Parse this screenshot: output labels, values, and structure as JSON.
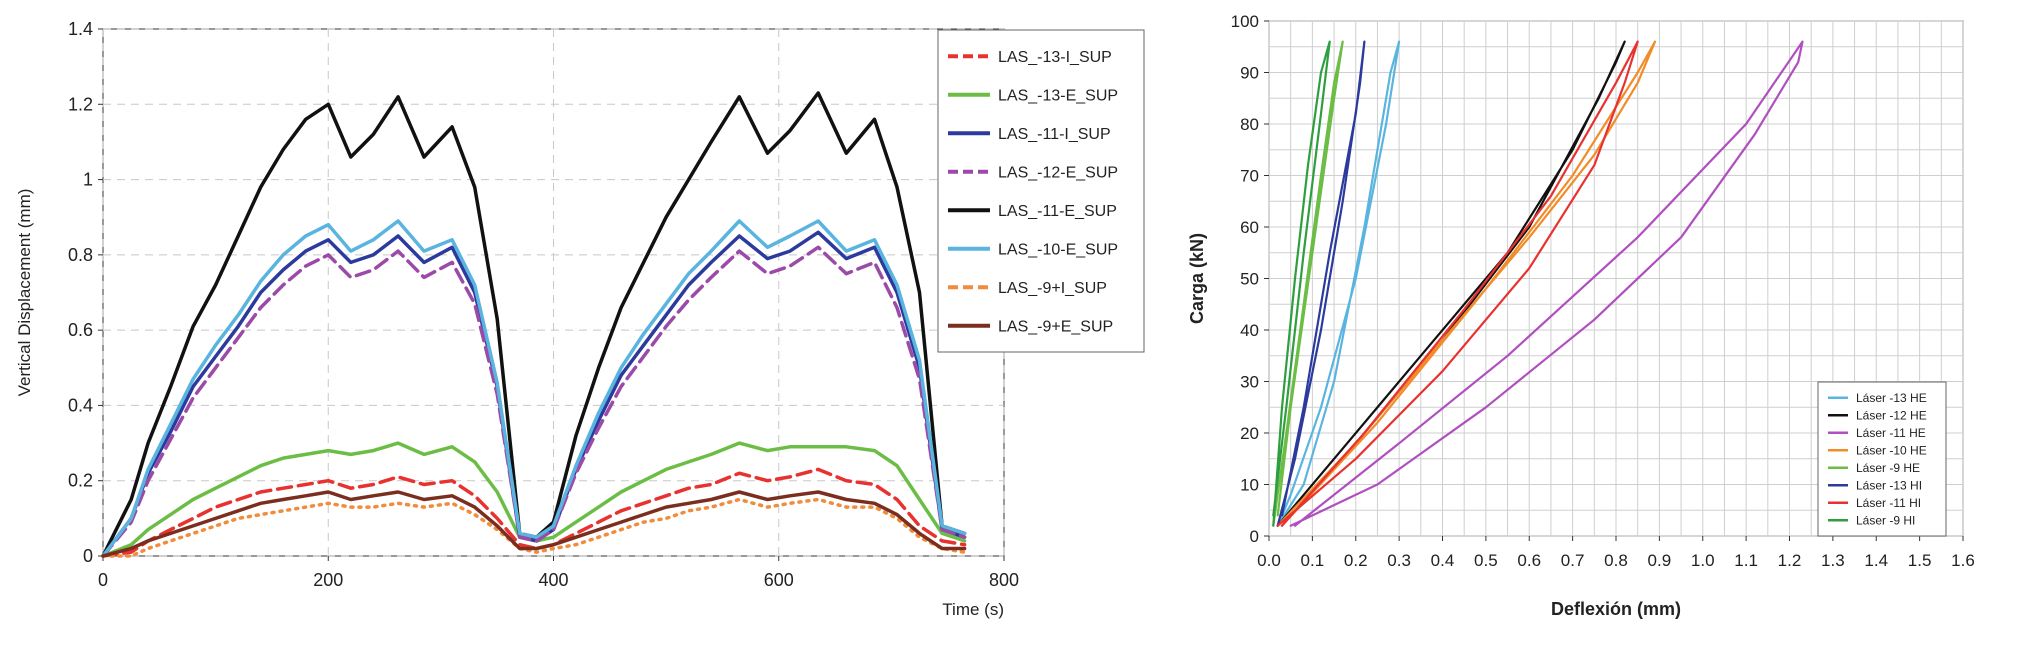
{
  "chart_data": [
    {
      "type": "line",
      "xlabel": "Time (s)",
      "ylabel": "Vertical Displacement (mm)",
      "xlim": [
        0,
        800
      ],
      "ylim": [
        0,
        1.4
      ],
      "xticks": [
        "0",
        "200",
        "400",
        "600",
        "800"
      ],
      "yticks": [
        "0",
        "0.2",
        "0.4",
        "0.6",
        "0.8",
        "1",
        "1.2",
        "1.4"
      ],
      "grid": true,
      "legend_position": "top-right",
      "series": [
        {
          "name": "LAS_-13-I_SUP",
          "color": "#e8322f",
          "style": "dashed",
          "x": [
            0,
            25,
            40,
            60,
            80,
            100,
            120,
            140,
            160,
            180,
            200,
            220,
            240,
            262,
            285,
            310,
            330,
            350,
            370,
            385,
            400,
            420,
            440,
            460,
            480,
            500,
            520,
            540,
            565,
            590,
            610,
            635,
            660,
            685,
            705,
            725,
            745,
            765
          ],
          "y": [
            0,
            0.01,
            0.04,
            0.07,
            0.1,
            0.13,
            0.15,
            0.17,
            0.18,
            0.19,
            0.2,
            0.18,
            0.19,
            0.21,
            0.19,
            0.2,
            0.16,
            0.1,
            0.03,
            0.02,
            0.03,
            0.06,
            0.09,
            0.12,
            0.14,
            0.16,
            0.18,
            0.19,
            0.22,
            0.2,
            0.21,
            0.23,
            0.2,
            0.19,
            0.15,
            0.08,
            0.04,
            0.03
          ]
        },
        {
          "name": "LAS_-13-E_SUP",
          "color": "#6cbd45",
          "style": "solid",
          "x": [
            0,
            25,
            40,
            60,
            80,
            100,
            120,
            140,
            160,
            180,
            200,
            220,
            240,
            262,
            285,
            310,
            330,
            350,
            370,
            385,
            400,
            420,
            440,
            460,
            480,
            500,
            520,
            540,
            565,
            590,
            610,
            635,
            660,
            685,
            705,
            725,
            745,
            765
          ],
          "y": [
            0,
            0.03,
            0.07,
            0.11,
            0.15,
            0.18,
            0.21,
            0.24,
            0.26,
            0.27,
            0.28,
            0.27,
            0.28,
            0.3,
            0.27,
            0.29,
            0.25,
            0.17,
            0.05,
            0.04,
            0.05,
            0.09,
            0.13,
            0.17,
            0.2,
            0.23,
            0.25,
            0.27,
            0.3,
            0.28,
            0.29,
            0.29,
            0.29,
            0.28,
            0.24,
            0.15,
            0.06,
            0.04
          ]
        },
        {
          "name": "LAS_-11-I_SUP",
          "color": "#2b3a9c",
          "style": "solid",
          "x": [
            0,
            25,
            40,
            60,
            80,
            100,
            120,
            140,
            160,
            180,
            200,
            220,
            240,
            262,
            285,
            310,
            330,
            350,
            370,
            385,
            400,
            420,
            440,
            460,
            480,
            500,
            520,
            540,
            565,
            590,
            610,
            635,
            660,
            685,
            705,
            725,
            745,
            765
          ],
          "y": [
            0,
            0.1,
            0.22,
            0.33,
            0.45,
            0.53,
            0.61,
            0.7,
            0.76,
            0.81,
            0.84,
            0.78,
            0.8,
            0.85,
            0.78,
            0.82,
            0.7,
            0.45,
            0.05,
            0.04,
            0.07,
            0.23,
            0.36,
            0.48,
            0.56,
            0.64,
            0.72,
            0.78,
            0.85,
            0.79,
            0.81,
            0.86,
            0.79,
            0.82,
            0.7,
            0.5,
            0.07,
            0.05
          ]
        },
        {
          "name": "LAS_-12-E_SUP",
          "color": "#9b4aa8",
          "style": "dashed",
          "x": [
            0,
            25,
            40,
            60,
            80,
            100,
            120,
            140,
            160,
            180,
            200,
            220,
            240,
            262,
            285,
            310,
            330,
            350,
            370,
            385,
            400,
            420,
            440,
            460,
            480,
            500,
            520,
            540,
            565,
            590,
            610,
            635,
            660,
            685,
            705,
            725,
            745,
            765
          ],
          "y": [
            0,
            0.09,
            0.2,
            0.31,
            0.42,
            0.5,
            0.58,
            0.66,
            0.72,
            0.77,
            0.8,
            0.74,
            0.76,
            0.81,
            0.74,
            0.78,
            0.67,
            0.43,
            0.05,
            0.04,
            0.07,
            0.22,
            0.34,
            0.45,
            0.53,
            0.61,
            0.68,
            0.74,
            0.81,
            0.75,
            0.77,
            0.82,
            0.75,
            0.78,
            0.66,
            0.47,
            0.07,
            0.05
          ]
        },
        {
          "name": "LAS_-11-E_SUP",
          "color": "#111111",
          "style": "solid",
          "x": [
            0,
            25,
            40,
            60,
            80,
            100,
            120,
            140,
            160,
            180,
            200,
            220,
            240,
            262,
            285,
            310,
            330,
            350,
            370,
            385,
            400,
            420,
            440,
            460,
            480,
            500,
            520,
            540,
            565,
            590,
            610,
            635,
            660,
            685,
            705,
            725,
            745,
            765
          ],
          "y": [
            0,
            0.15,
            0.3,
            0.45,
            0.61,
            0.72,
            0.85,
            0.98,
            1.08,
            1.16,
            1.2,
            1.06,
            1.12,
            1.22,
            1.06,
            1.14,
            0.98,
            0.63,
            0.06,
            0.05,
            0.09,
            0.32,
            0.5,
            0.66,
            0.78,
            0.9,
            1.0,
            1.1,
            1.22,
            1.07,
            1.13,
            1.23,
            1.07,
            1.16,
            0.98,
            0.7,
            0.08,
            0.06
          ]
        },
        {
          "name": "LAS_-10-E_SUP",
          "color": "#5ab4e0",
          "style": "solid",
          "x": [
            0,
            25,
            40,
            60,
            80,
            100,
            120,
            140,
            160,
            180,
            200,
            220,
            240,
            262,
            285,
            310,
            330,
            350,
            370,
            385,
            400,
            420,
            440,
            460,
            480,
            500,
            520,
            540,
            565,
            590,
            610,
            635,
            660,
            685,
            705,
            725,
            745,
            765
          ],
          "y": [
            0,
            0.1,
            0.23,
            0.35,
            0.47,
            0.56,
            0.64,
            0.73,
            0.8,
            0.85,
            0.88,
            0.81,
            0.84,
            0.89,
            0.81,
            0.84,
            0.72,
            0.46,
            0.06,
            0.05,
            0.08,
            0.24,
            0.38,
            0.5,
            0.59,
            0.67,
            0.75,
            0.81,
            0.89,
            0.82,
            0.85,
            0.89,
            0.81,
            0.84,
            0.72,
            0.52,
            0.08,
            0.06
          ]
        },
        {
          "name": "LAS_-9+I_SUP",
          "color": "#f08c3c",
          "style": "dotted",
          "x": [
            0,
            25,
            40,
            60,
            80,
            100,
            120,
            140,
            160,
            180,
            200,
            220,
            240,
            262,
            285,
            310,
            330,
            350,
            370,
            385,
            400,
            420,
            440,
            460,
            480,
            500,
            520,
            540,
            565,
            590,
            610,
            635,
            660,
            685,
            705,
            725,
            745,
            765
          ],
          "y": [
            0,
            0,
            0.02,
            0.04,
            0.06,
            0.08,
            0.1,
            0.11,
            0.12,
            0.13,
            0.14,
            0.13,
            0.13,
            0.14,
            0.13,
            0.14,
            0.11,
            0.07,
            0.02,
            0.01,
            0.02,
            0.03,
            0.05,
            0.07,
            0.09,
            0.1,
            0.12,
            0.13,
            0.15,
            0.13,
            0.14,
            0.15,
            0.13,
            0.13,
            0.1,
            0.05,
            0.02,
            0.01
          ]
        },
        {
          "name": "LAS_-9+E_SUP",
          "color": "#7b2d1e",
          "style": "solid",
          "x": [
            0,
            25,
            40,
            60,
            80,
            100,
            120,
            140,
            160,
            180,
            200,
            220,
            240,
            262,
            285,
            310,
            330,
            350,
            370,
            385,
            400,
            420,
            440,
            460,
            480,
            500,
            520,
            540,
            565,
            590,
            610,
            635,
            660,
            685,
            705,
            725,
            745,
            765
          ],
          "y": [
            0,
            0.02,
            0.04,
            0.06,
            0.08,
            0.1,
            0.12,
            0.14,
            0.15,
            0.16,
            0.17,
            0.15,
            0.16,
            0.17,
            0.15,
            0.16,
            0.13,
            0.08,
            0.02,
            0.02,
            0.03,
            0.05,
            0.07,
            0.09,
            0.11,
            0.13,
            0.14,
            0.15,
            0.17,
            0.15,
            0.16,
            0.17,
            0.15,
            0.14,
            0.11,
            0.06,
            0.02,
            0.02
          ]
        }
      ]
    },
    {
      "type": "line",
      "xlabel": "Deflexión (mm)",
      "ylabel": "Carga (kN)",
      "xlim": [
        0,
        1.6
      ],
      "ylim": [
        0,
        100
      ],
      "xticks": [
        "0.0",
        "0.1",
        "0.2",
        "0.3",
        "0.4",
        "0.5",
        "0.6",
        "0.7",
        "0.8",
        "0.9",
        "1.0",
        "1.1",
        "1.2",
        "1.3",
        "1.4",
        "1.5",
        "1.6"
      ],
      "yticks": [
        "0",
        "10",
        "20",
        "30",
        "40",
        "50",
        "60",
        "70",
        "80",
        "90",
        "100"
      ],
      "grid": true,
      "legend_position": "bottom-right",
      "series": [
        {
          "name": "Láser -13 HE",
          "color": "#5ab4e0",
          "x": [
            0.02,
            0.08,
            0.15,
            0.22,
            0.28,
            0.3,
            0.27,
            0.2,
            0.12,
            0.05,
            0.02
          ],
          "y": [
            2,
            10,
            30,
            60,
            90,
            96,
            80,
            50,
            25,
            8,
            2
          ]
        },
        {
          "name": "Láser -12 HE",
          "color": "#111111",
          "x": [
            0.02,
            0.15,
            0.35,
            0.55,
            0.7,
            0.8,
            0.82,
            0.76,
            0.6,
            0.4,
            0.2,
            0.03
          ],
          "y": [
            2,
            15,
            35,
            55,
            75,
            92,
            96,
            85,
            60,
            38,
            18,
            2
          ]
        },
        {
          "name": "Láser -11 HE",
          "color": "#b04fbf",
          "x": [
            0.05,
            0.25,
            0.5,
            0.75,
            0.95,
            1.12,
            1.22,
            1.23,
            1.1,
            0.85,
            0.55,
            0.3,
            0.06
          ],
          "y": [
            2,
            10,
            25,
            42,
            58,
            78,
            92,
            96,
            80,
            58,
            35,
            18,
            2
          ]
        },
        {
          "name": "Láser -10 HE",
          "color": "#f28c28",
          "x": [
            0.02,
            0.2,
            0.4,
            0.6,
            0.75,
            0.85,
            0.89,
            0.85,
            0.7,
            0.5,
            0.25,
            0.03
          ],
          "y": [
            2,
            18,
            38,
            58,
            74,
            88,
            96,
            90,
            70,
            48,
            22,
            2
          ]
        },
        {
          "name": "Láser -9 HE",
          "color": "#6cbd45",
          "x": [
            0.01,
            0.04,
            0.08,
            0.12,
            0.15,
            0.17,
            0.15,
            0.1,
            0.05,
            0.02
          ],
          "y": [
            2,
            20,
            45,
            70,
            88,
            96,
            85,
            55,
            25,
            4
          ]
        },
        {
          "name": "Láser -13 HI",
          "color": "#2b3a9c",
          "x": [
            0.02,
            0.06,
            0.12,
            0.17,
            0.21,
            0.22,
            0.2,
            0.14,
            0.08,
            0.03
          ],
          "y": [
            2,
            15,
            40,
            65,
            88,
            96,
            82,
            55,
            25,
            4
          ]
        },
        {
          "name": "Láser -11 HI",
          "color": "#e8322f",
          "x": [
            0.02,
            0.2,
            0.4,
            0.6,
            0.75,
            0.82,
            0.85,
            0.8,
            0.65,
            0.45,
            0.22,
            0.03
          ],
          "y": [
            2,
            15,
            32,
            52,
            72,
            88,
            96,
            88,
            66,
            44,
            20,
            2
          ]
        },
        {
          "name": "Láser -9 HI",
          "color": "#2e9e3f",
          "x": [
            0.01,
            0.03,
            0.06,
            0.09,
            0.12,
            0.14,
            0.12,
            0.08,
            0.04,
            0.01
          ],
          "y": [
            2,
            25,
            50,
            72,
            90,
            96,
            82,
            55,
            25,
            4
          ]
        }
      ]
    }
  ]
}
